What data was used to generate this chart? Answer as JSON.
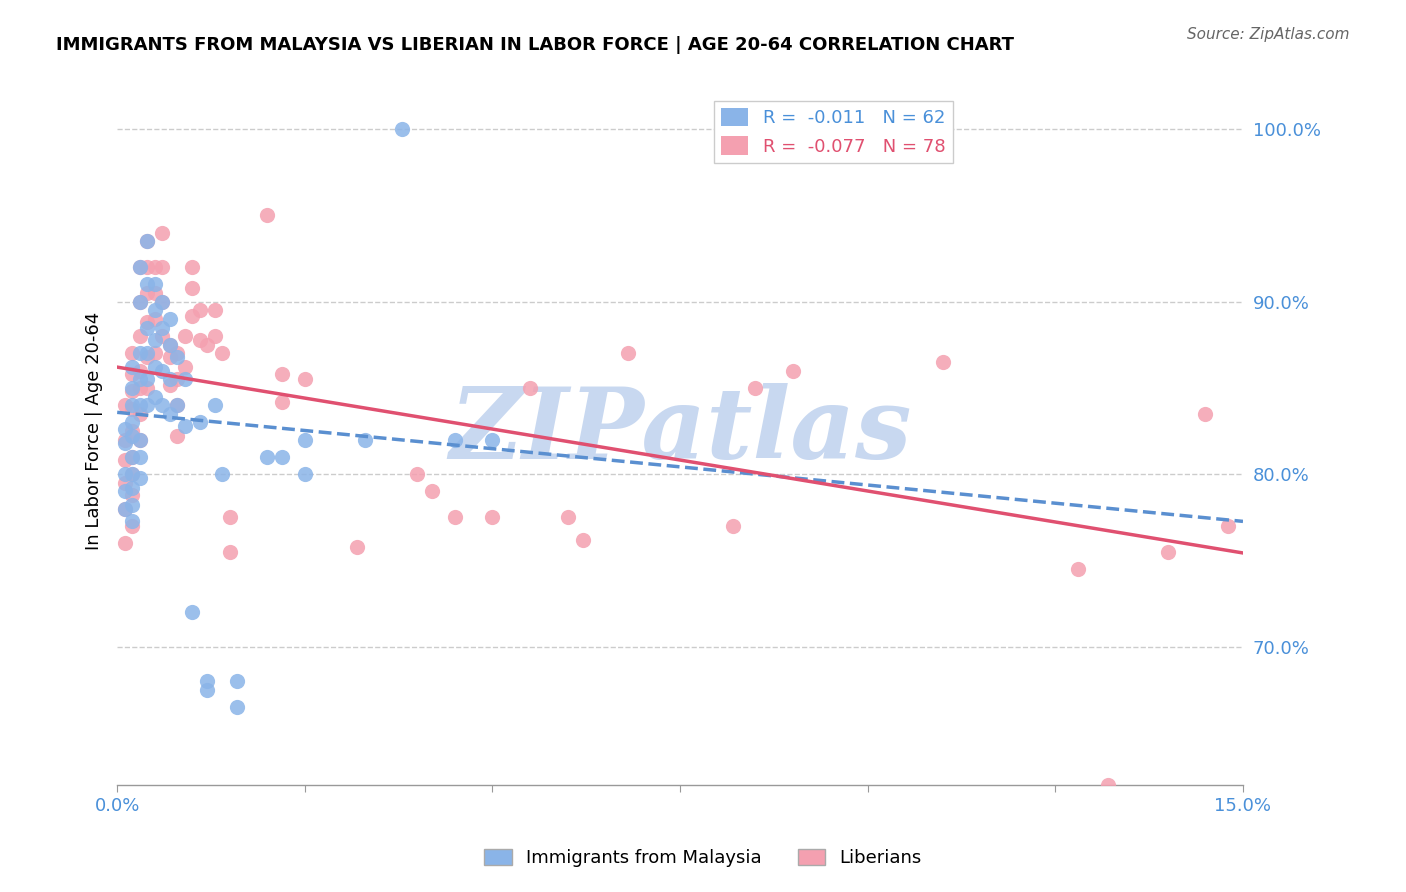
{
  "title": "IMMIGRANTS FROM MALAYSIA VS LIBERIAN IN LABOR FORCE | AGE 20-64 CORRELATION CHART",
  "source_text": "Source: ZipAtlas.com",
  "xlabel": "",
  "ylabel": "In Labor Force | Age 20-64",
  "xlim": [
    0.0,
    0.15
  ],
  "ylim": [
    0.62,
    1.03
  ],
  "xticks": [
    0.0,
    0.025,
    0.05,
    0.075,
    0.1,
    0.125,
    0.15
  ],
  "xticklabels": [
    "0.0%",
    "",
    "",
    "",
    "",
    "",
    "15.0%"
  ],
  "ytick_positions": [
    0.7,
    0.8,
    0.9,
    1.0
  ],
  "ytick_labels": [
    "70.0%",
    "80.0%",
    "90.0%",
    "100.0%"
  ],
  "legend_r1": "R =  -0.011   N = 62",
  "legend_r2": "R =  -0.077   N = 78",
  "color_malaysia": "#8ab4e8",
  "color_liberian": "#f4a0b0",
  "color_malaysia_line": "#5a8fd0",
  "color_liberian_line": "#e05070",
  "color_axis_labels": "#4a90d9",
  "watermark_text": "ZIPatlas",
  "watermark_color": "#c8d8f0",
  "malaysia_x": [
    0.001,
    0.001,
    0.001,
    0.001,
    0.001,
    0.002,
    0.002,
    0.002,
    0.002,
    0.002,
    0.002,
    0.002,
    0.002,
    0.002,
    0.002,
    0.003,
    0.003,
    0.003,
    0.003,
    0.003,
    0.003,
    0.003,
    0.003,
    0.004,
    0.004,
    0.004,
    0.004,
    0.004,
    0.004,
    0.005,
    0.005,
    0.005,
    0.005,
    0.005,
    0.006,
    0.006,
    0.006,
    0.006,
    0.007,
    0.007,
    0.007,
    0.007,
    0.008,
    0.008,
    0.009,
    0.009,
    0.01,
    0.011,
    0.012,
    0.012,
    0.013,
    0.014,
    0.016,
    0.016,
    0.02,
    0.022,
    0.025,
    0.025,
    0.033,
    0.038,
    0.045,
    0.05
  ],
  "malaysia_y": [
    0.826,
    0.818,
    0.8,
    0.79,
    0.78,
    0.862,
    0.85,
    0.84,
    0.83,
    0.822,
    0.81,
    0.8,
    0.792,
    0.782,
    0.773,
    0.92,
    0.9,
    0.87,
    0.855,
    0.84,
    0.82,
    0.81,
    0.798,
    0.935,
    0.91,
    0.885,
    0.87,
    0.855,
    0.84,
    0.91,
    0.895,
    0.878,
    0.862,
    0.845,
    0.9,
    0.885,
    0.86,
    0.84,
    0.89,
    0.875,
    0.855,
    0.835,
    0.868,
    0.84,
    0.855,
    0.828,
    0.72,
    0.83,
    0.68,
    0.675,
    0.84,
    0.8,
    0.68,
    0.665,
    0.81,
    0.81,
    0.82,
    0.8,
    0.82,
    1.0,
    0.82,
    0.82
  ],
  "liberian_x": [
    0.001,
    0.001,
    0.001,
    0.001,
    0.001,
    0.001,
    0.002,
    0.002,
    0.002,
    0.002,
    0.002,
    0.002,
    0.002,
    0.002,
    0.002,
    0.003,
    0.003,
    0.003,
    0.003,
    0.003,
    0.003,
    0.003,
    0.004,
    0.004,
    0.004,
    0.004,
    0.004,
    0.004,
    0.005,
    0.005,
    0.005,
    0.005,
    0.006,
    0.006,
    0.006,
    0.006,
    0.007,
    0.007,
    0.007,
    0.008,
    0.008,
    0.008,
    0.008,
    0.009,
    0.009,
    0.01,
    0.01,
    0.01,
    0.011,
    0.011,
    0.012,
    0.013,
    0.013,
    0.014,
    0.015,
    0.015,
    0.02,
    0.022,
    0.022,
    0.025,
    0.032,
    0.04,
    0.042,
    0.045,
    0.05,
    0.055,
    0.06,
    0.062,
    0.068,
    0.082,
    0.085,
    0.09,
    0.11,
    0.128,
    0.132,
    0.14,
    0.145,
    0.148
  ],
  "liberian_y": [
    0.84,
    0.82,
    0.808,
    0.795,
    0.78,
    0.76,
    0.87,
    0.858,
    0.848,
    0.838,
    0.825,
    0.81,
    0.8,
    0.788,
    0.77,
    0.92,
    0.9,
    0.88,
    0.86,
    0.85,
    0.835,
    0.82,
    0.935,
    0.92,
    0.905,
    0.888,
    0.868,
    0.85,
    0.92,
    0.905,
    0.89,
    0.87,
    0.94,
    0.92,
    0.9,
    0.88,
    0.875,
    0.868,
    0.852,
    0.87,
    0.855,
    0.84,
    0.822,
    0.88,
    0.862,
    0.92,
    0.908,
    0.892,
    0.895,
    0.878,
    0.875,
    0.895,
    0.88,
    0.87,
    0.775,
    0.755,
    0.95,
    0.858,
    0.842,
    0.855,
    0.758,
    0.8,
    0.79,
    0.775,
    0.775,
    0.85,
    0.775,
    0.762,
    0.87,
    0.77,
    0.85,
    0.86,
    0.865,
    0.745,
    0.62,
    0.755,
    0.835,
    0.77
  ]
}
